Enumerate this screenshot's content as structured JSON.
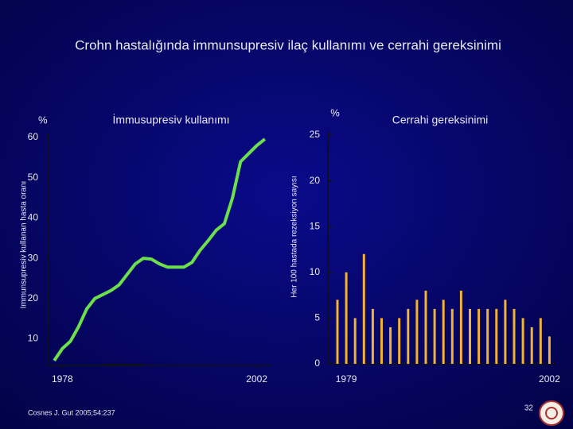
{
  "slide": {
    "title": "Crohn hastalığında  immunsupresiv  ilaç kullanımı ve cerrahi gereksinimi",
    "citation": "Cosnes J. Gut 2005;54:237",
    "page_number": "32"
  },
  "chart_data": [
    {
      "type": "line",
      "title": "İmmusupresiv  kullanımı",
      "unit": "%",
      "y_label": "Immunsupresiv kullanan hasta oranı",
      "color": "#6be04a",
      "x": [
        1977,
        1978,
        1979,
        1980,
        1981,
        1982,
        1983,
        1984,
        1985,
        1986,
        1987,
        1988,
        1989,
        1990,
        1991,
        1992,
        1993,
        1994,
        1995,
        1996,
        1997,
        1998,
        1999,
        2000,
        2001,
        2002,
        2003
      ],
      "values": [
        4.6,
        7.6,
        9.4,
        13,
        17.4,
        20,
        21,
        22,
        23.4,
        26,
        28.6,
        30,
        29.8,
        28.6,
        27.8,
        27.8,
        27.8,
        29,
        32,
        34.4,
        37,
        38.6,
        45,
        54,
        56,
        58,
        59.6
      ],
      "xlim": [
        1976.2,
        2003.9
      ],
      "xticks": [
        1978,
        2002
      ],
      "ylim": [
        3.4,
        61
      ],
      "yticks": [
        10,
        20,
        30,
        40,
        50,
        60
      ]
    },
    {
      "type": "bar",
      "title": "Cerrahi  gereksinimi",
      "unit": "%",
      "y_label": "Her  100 hastada rezeksiyon sayısı",
      "color": "#f2b233",
      "categories": [
        null,
        "1979",
        null,
        null,
        null,
        null,
        null,
        null,
        null,
        null,
        null,
        null,
        null,
        null,
        null,
        null,
        null,
        null,
        null,
        null,
        null,
        null,
        null,
        null,
        "2002"
      ],
      "values": [
        7,
        10,
        5,
        12,
        6,
        5,
        4,
        5,
        6,
        7,
        8,
        6,
        7,
        6,
        8,
        6,
        6,
        6,
        6,
        7,
        6,
        5,
        4,
        5,
        3
      ],
      "ylim": [
        0,
        25
      ],
      "yticks": [
        0,
        5,
        10,
        15,
        20,
        25
      ]
    }
  ]
}
